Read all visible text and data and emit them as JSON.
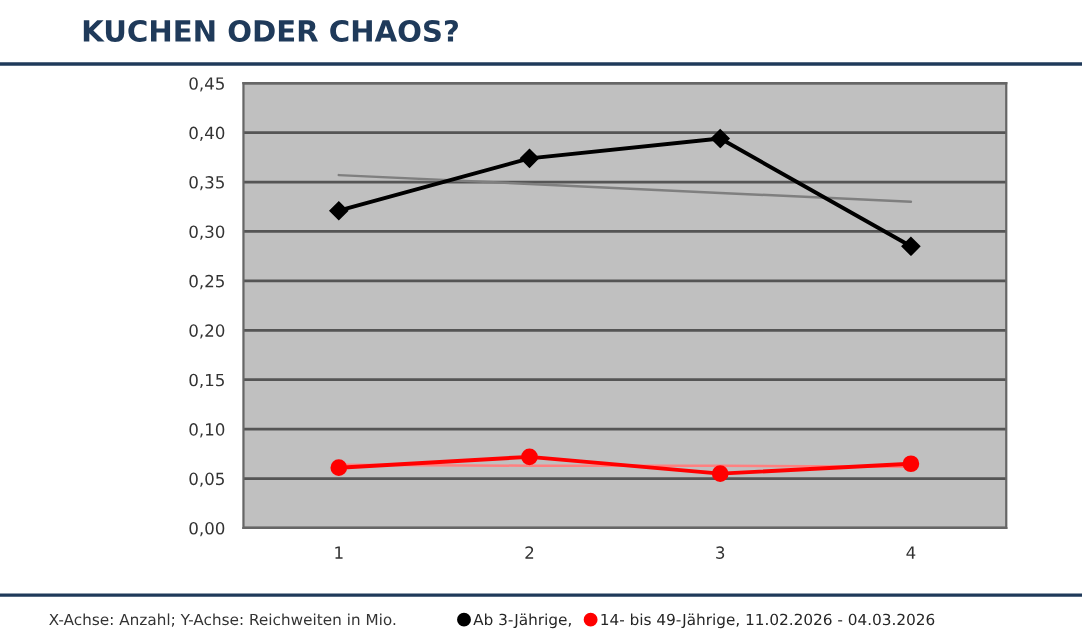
{
  "chart_data": {
    "type": "line",
    "title": "KUCHEN ODER CHAOS?",
    "categories": [
      "1",
      "2",
      "3",
      "4"
    ],
    "series": [
      {
        "name": "Ab 3-Jährige,",
        "color": "#000000",
        "values": [
          0.321,
          0.374,
          0.394,
          0.285
        ],
        "marker": "diamond"
      },
      {
        "name": "14- bis 49-Jährige, 11.02.2026 - 04.03.2026",
        "color": "#ff0000",
        "values": [
          0.061,
          0.072,
          0.055,
          0.065
        ],
        "marker": "circle"
      },
      {
        "color": "#7f7f7f",
        "values": [
          0.357,
          0.348,
          0.339,
          0.33
        ],
        "marker": "none"
      },
      {
        "color": "#ff8080",
        "values": [
          0.064,
          0.063,
          0.063,
          0.062
        ],
        "marker": "none"
      }
    ],
    "ylim": [
      0,
      0.45
    ],
    "yticks": [
      {
        "value": 0,
        "label": "0,00"
      },
      {
        "value": 0.05,
        "label": "0,05"
      },
      {
        "value": 0.1,
        "label": "0,10"
      },
      {
        "value": 0.15,
        "label": "0,15"
      },
      {
        "value": 0.2,
        "label": "0,20"
      },
      {
        "value": 0.25,
        "label": "0,25"
      },
      {
        "value": 0.3,
        "label": "0,30"
      },
      {
        "value": 0.35,
        "label": "0,35"
      },
      {
        "value": 0.4,
        "label": "0,40"
      },
      {
        "value": 0.45,
        "label": "0,45"
      }
    ],
    "grid": "y",
    "legend": "bottom",
    "line_style": "solid",
    "annotations": [
      "X-Achse: Anzahl; Y-Achse: Reichweiten in Mio."
    ]
  }
}
